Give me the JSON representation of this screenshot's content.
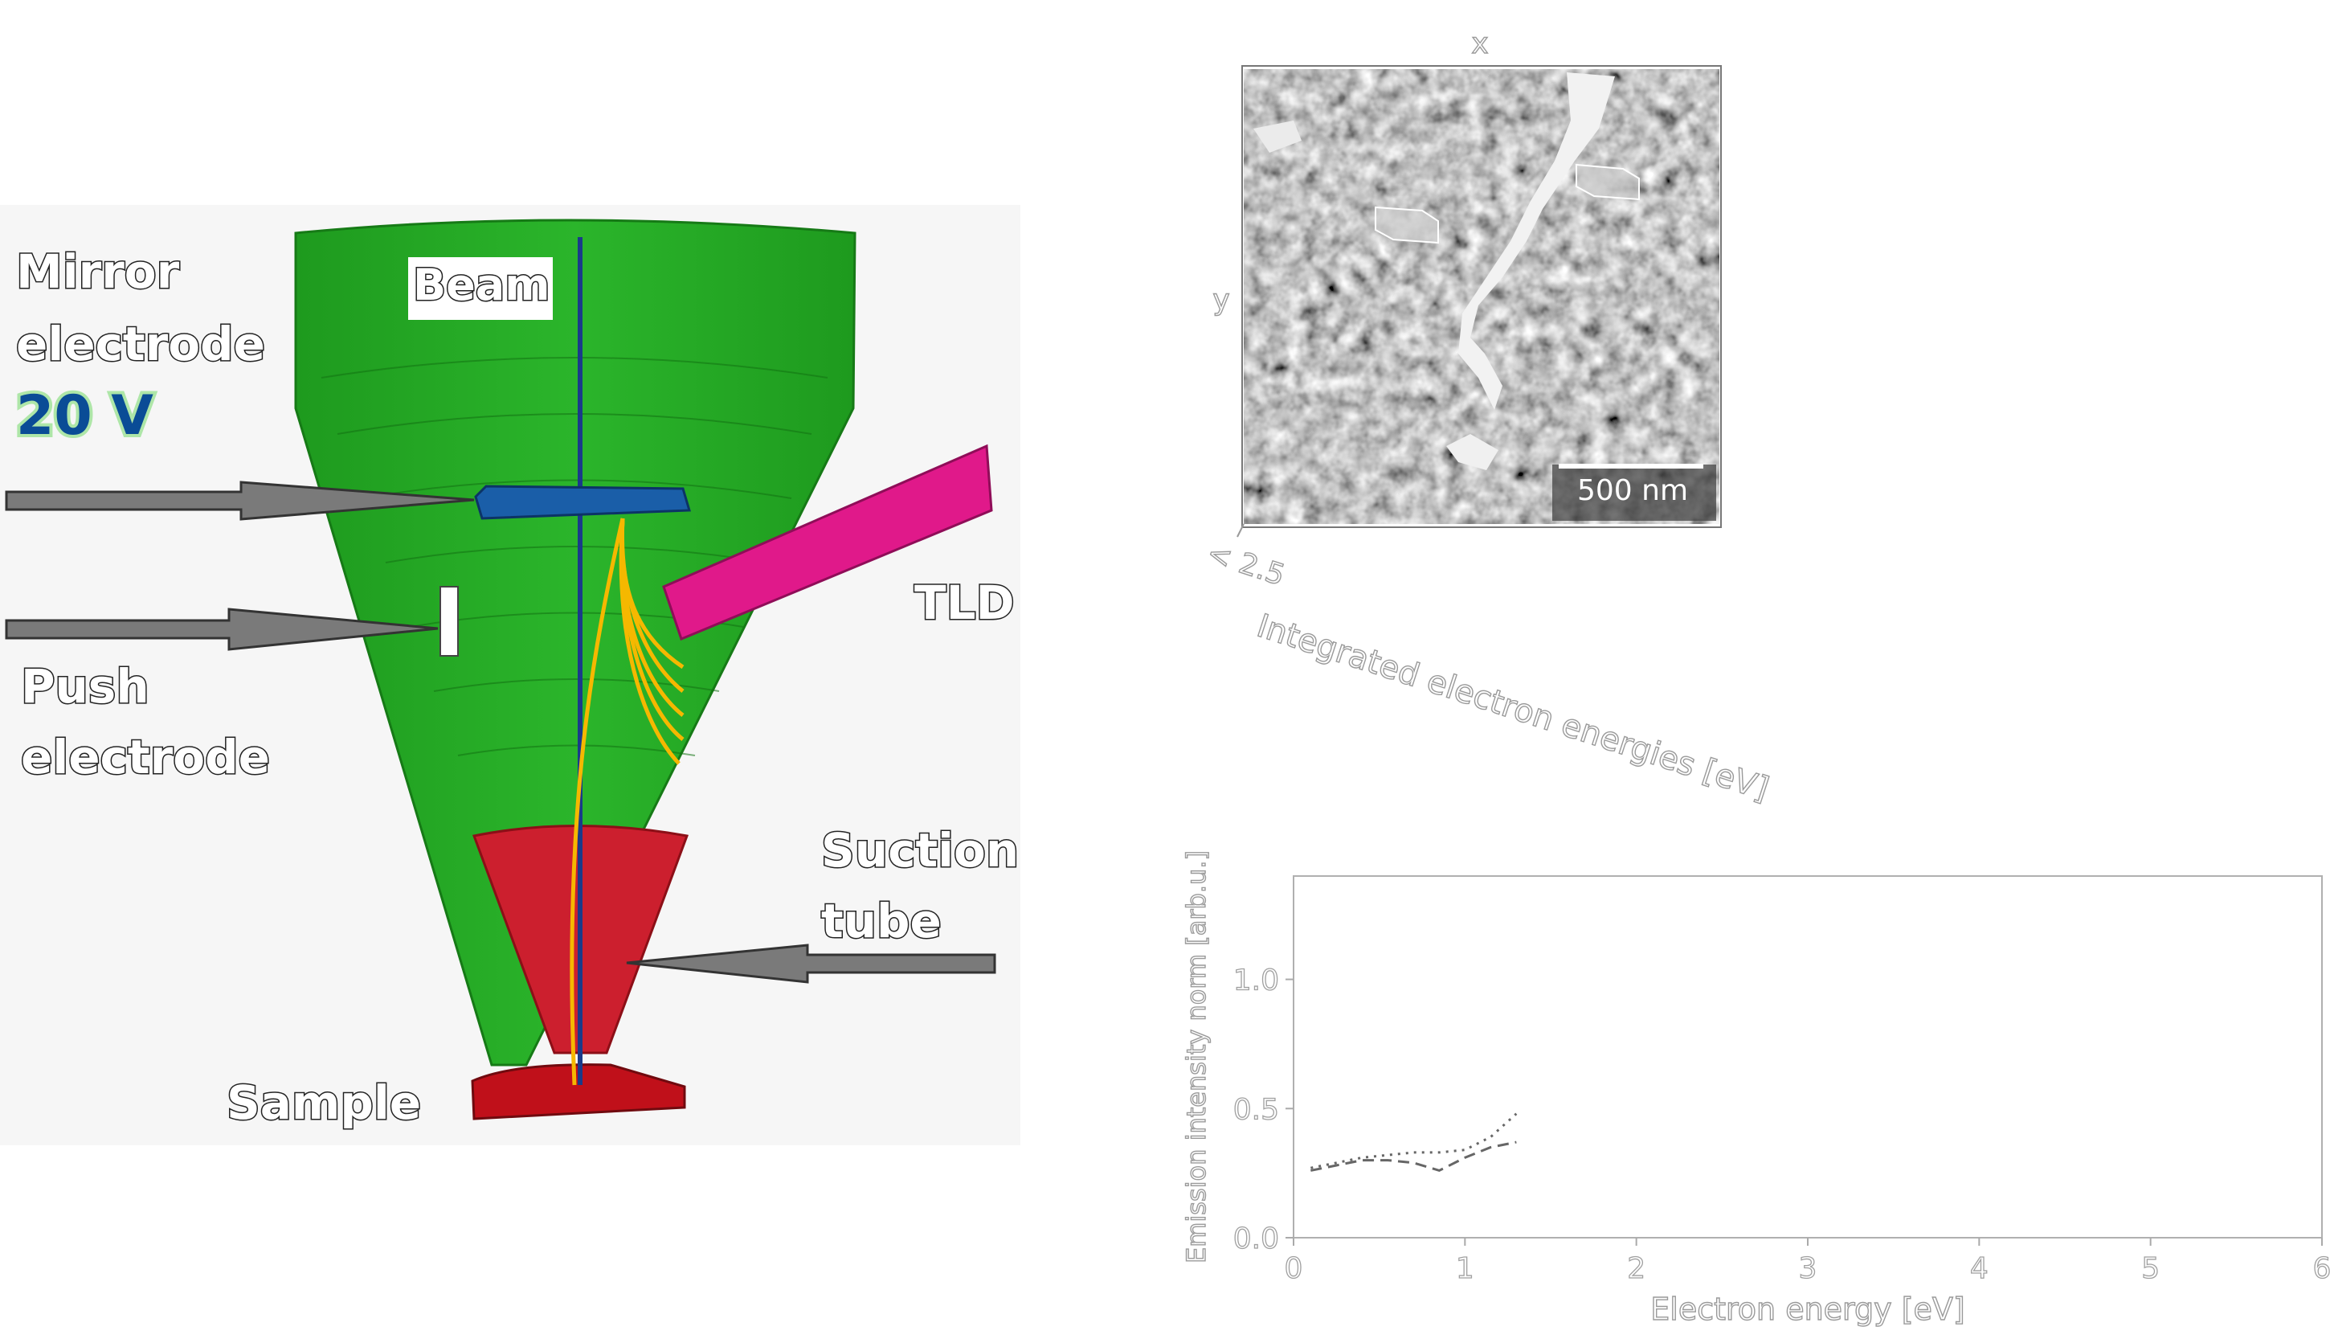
{
  "diagram": {
    "labels": {
      "mirror_line1": "Mirror",
      "mirror_line2": "electrode",
      "mirror_voltage": "20 V",
      "beam": "Beam",
      "tld": "TLD",
      "push_line1": "Push",
      "push_line2": "electrode",
      "suction_line1": "Suction",
      "suction_line2": "tube",
      "sample": "Sample"
    },
    "colors": {
      "cone": "#22aa22",
      "suction_tube": "#cc1f2e",
      "sample": "#c0101a",
      "mirror_electrode": "#1a5ea8",
      "tld": "#e0198a",
      "beam": "#1a3a8a",
      "trajectories": "#f5b800",
      "arrows": "#707070",
      "voltage_text": "#0a4c96"
    },
    "icons": [
      "arrow-icon"
    ]
  },
  "sem_image": {
    "x_label": "x",
    "y_label": "y",
    "scale_bar_label": "500 nm",
    "energy_marker": "< 2.5",
    "colorbar_label": "Integrated electron energies [eV]"
  },
  "chart_data": {
    "type": "line",
    "title": "",
    "xlabel": "Electron energy [eV]",
    "ylabel": "Emission intensity norm [arb.u.]",
    "xlim": [
      0,
      6
    ],
    "ylim": [
      0,
      1.4
    ],
    "x_ticks": [
      "0",
      "1",
      "2",
      "3",
      "4",
      "5",
      "6"
    ],
    "y_ticks": [
      "0.0",
      "0.5",
      "1.0"
    ],
    "grid": false,
    "legend": "none",
    "series": [
      {
        "style": "dashed",
        "x": [
          0.1,
          0.25,
          0.4,
          0.55,
          0.7,
          0.85,
          1.0,
          1.15,
          1.3
        ],
        "y": [
          0.26,
          0.28,
          0.3,
          0.3,
          0.29,
          0.26,
          0.31,
          0.35,
          0.37
        ]
      },
      {
        "style": "dotted",
        "x": [
          0.1,
          0.25,
          0.4,
          0.55,
          0.7,
          0.85,
          1.0,
          1.15,
          1.3
        ],
        "y": [
          0.27,
          0.29,
          0.31,
          0.32,
          0.33,
          0.33,
          0.34,
          0.39,
          0.48
        ]
      }
    ]
  }
}
